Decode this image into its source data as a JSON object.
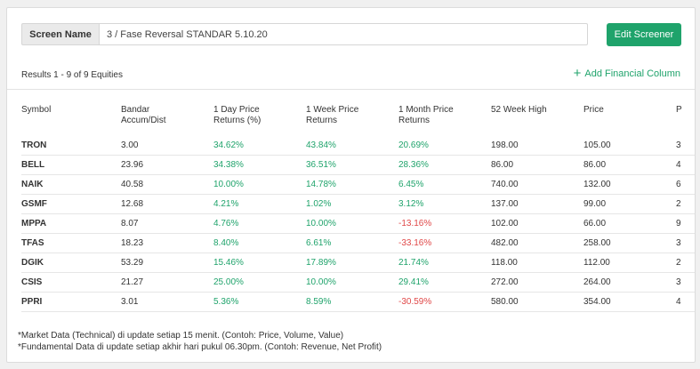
{
  "screen": {
    "label": "Screen Name",
    "value": "3 / Fase Reversal STANDAR 5.10.20",
    "edit_button": "Edit Screener"
  },
  "results_text": "Results 1 - 9 of 9 Equities",
  "add_column": "Add Financial Column",
  "columns": [
    "Symbol",
    "Bandar Accum/Dist",
    "1 Day Price Returns (%)",
    "1 Week Price Returns",
    "1 Month Price Returns",
    "52 Week High",
    "Price",
    "P"
  ],
  "rows": [
    {
      "symbol": "TRON",
      "bandar": "3.00",
      "day": "34.62%",
      "week": "43.84%",
      "month": "20.69%",
      "high52": "198.00",
      "price": "105.00",
      "p": "3"
    },
    {
      "symbol": "BELL",
      "bandar": "23.96",
      "day": "34.38%",
      "week": "36.51%",
      "month": "28.36%",
      "high52": "86.00",
      "price": "86.00",
      "p": "4"
    },
    {
      "symbol": "NAIK",
      "bandar": "40.58",
      "day": "10.00%",
      "week": "14.78%",
      "month": "6.45%",
      "high52": "740.00",
      "price": "132.00",
      "p": "6"
    },
    {
      "symbol": "GSMF",
      "bandar": "12.68",
      "day": "4.21%",
      "week": "1.02%",
      "month": "3.12%",
      "high52": "137.00",
      "price": "99.00",
      "p": "2"
    },
    {
      "symbol": "MPPA",
      "bandar": "8.07",
      "day": "4.76%",
      "week": "10.00%",
      "month": "-13.16%",
      "high52": "102.00",
      "price": "66.00",
      "p": "9"
    },
    {
      "symbol": "TFAS",
      "bandar": "18.23",
      "day": "8.40%",
      "week": "6.61%",
      "month": "-33.16%",
      "high52": "482.00",
      "price": "258.00",
      "p": "3"
    },
    {
      "symbol": "DGIK",
      "bandar": "53.29",
      "day": "15.46%",
      "week": "17.89%",
      "month": "21.74%",
      "high52": "118.00",
      "price": "112.00",
      "p": "2"
    },
    {
      "symbol": "CSIS",
      "bandar": "21.27",
      "day": "25.00%",
      "week": "10.00%",
      "month": "29.41%",
      "high52": "272.00",
      "price": "264.00",
      "p": "3"
    },
    {
      "symbol": "PPRI",
      "bandar": "3.01",
      "day": "5.36%",
      "week": "8.59%",
      "month": "-30.59%",
      "high52": "580.00",
      "price": "354.00",
      "p": "4"
    }
  ],
  "footnotes": [
    "*Market Data (Technical) di update setiap 15 menit. (Contoh: Price, Volume, Value)",
    "*Fundamental Data di update setiap akhir hari pukul 06.30pm. (Contoh: Revenue, Net Profit)"
  ],
  "colors": {
    "accent": "#1fa36b",
    "negative": "#e04848"
  }
}
